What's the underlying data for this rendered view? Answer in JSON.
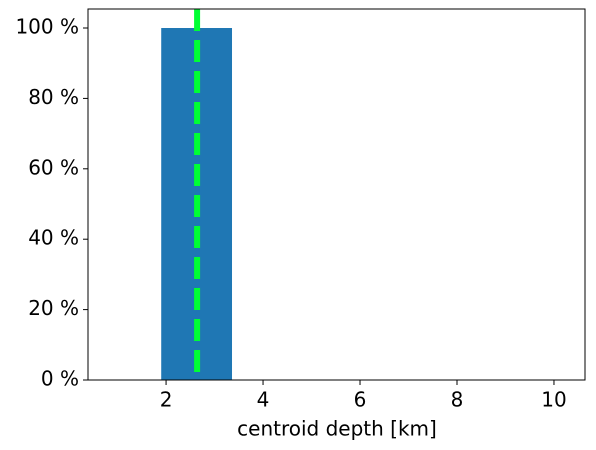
{
  "chart_data": {
    "type": "histogram",
    "xlabel": "centroid depth [km]",
    "bins": [
      1.9,
      3.36
    ],
    "counts": [
      100
    ],
    "color": "#1f77b4",
    "vline": 2.64,
    "vline_color": "#00ff33",
    "xlim": [
      0.39,
      10.64
    ],
    "xticks": [
      2,
      4,
      6,
      8,
      10
    ],
    "ylim": [
      0,
      105.4
    ],
    "yticks": [
      {
        "value": 0,
        "label": "0 %"
      },
      {
        "value": 20,
        "label": "20 %"
      },
      {
        "value": 40,
        "label": "40 %"
      },
      {
        "value": 60,
        "label": "60 %"
      },
      {
        "value": 80,
        "label": "80 %"
      },
      {
        "value": 100,
        "label": "100 %"
      }
    ]
  }
}
